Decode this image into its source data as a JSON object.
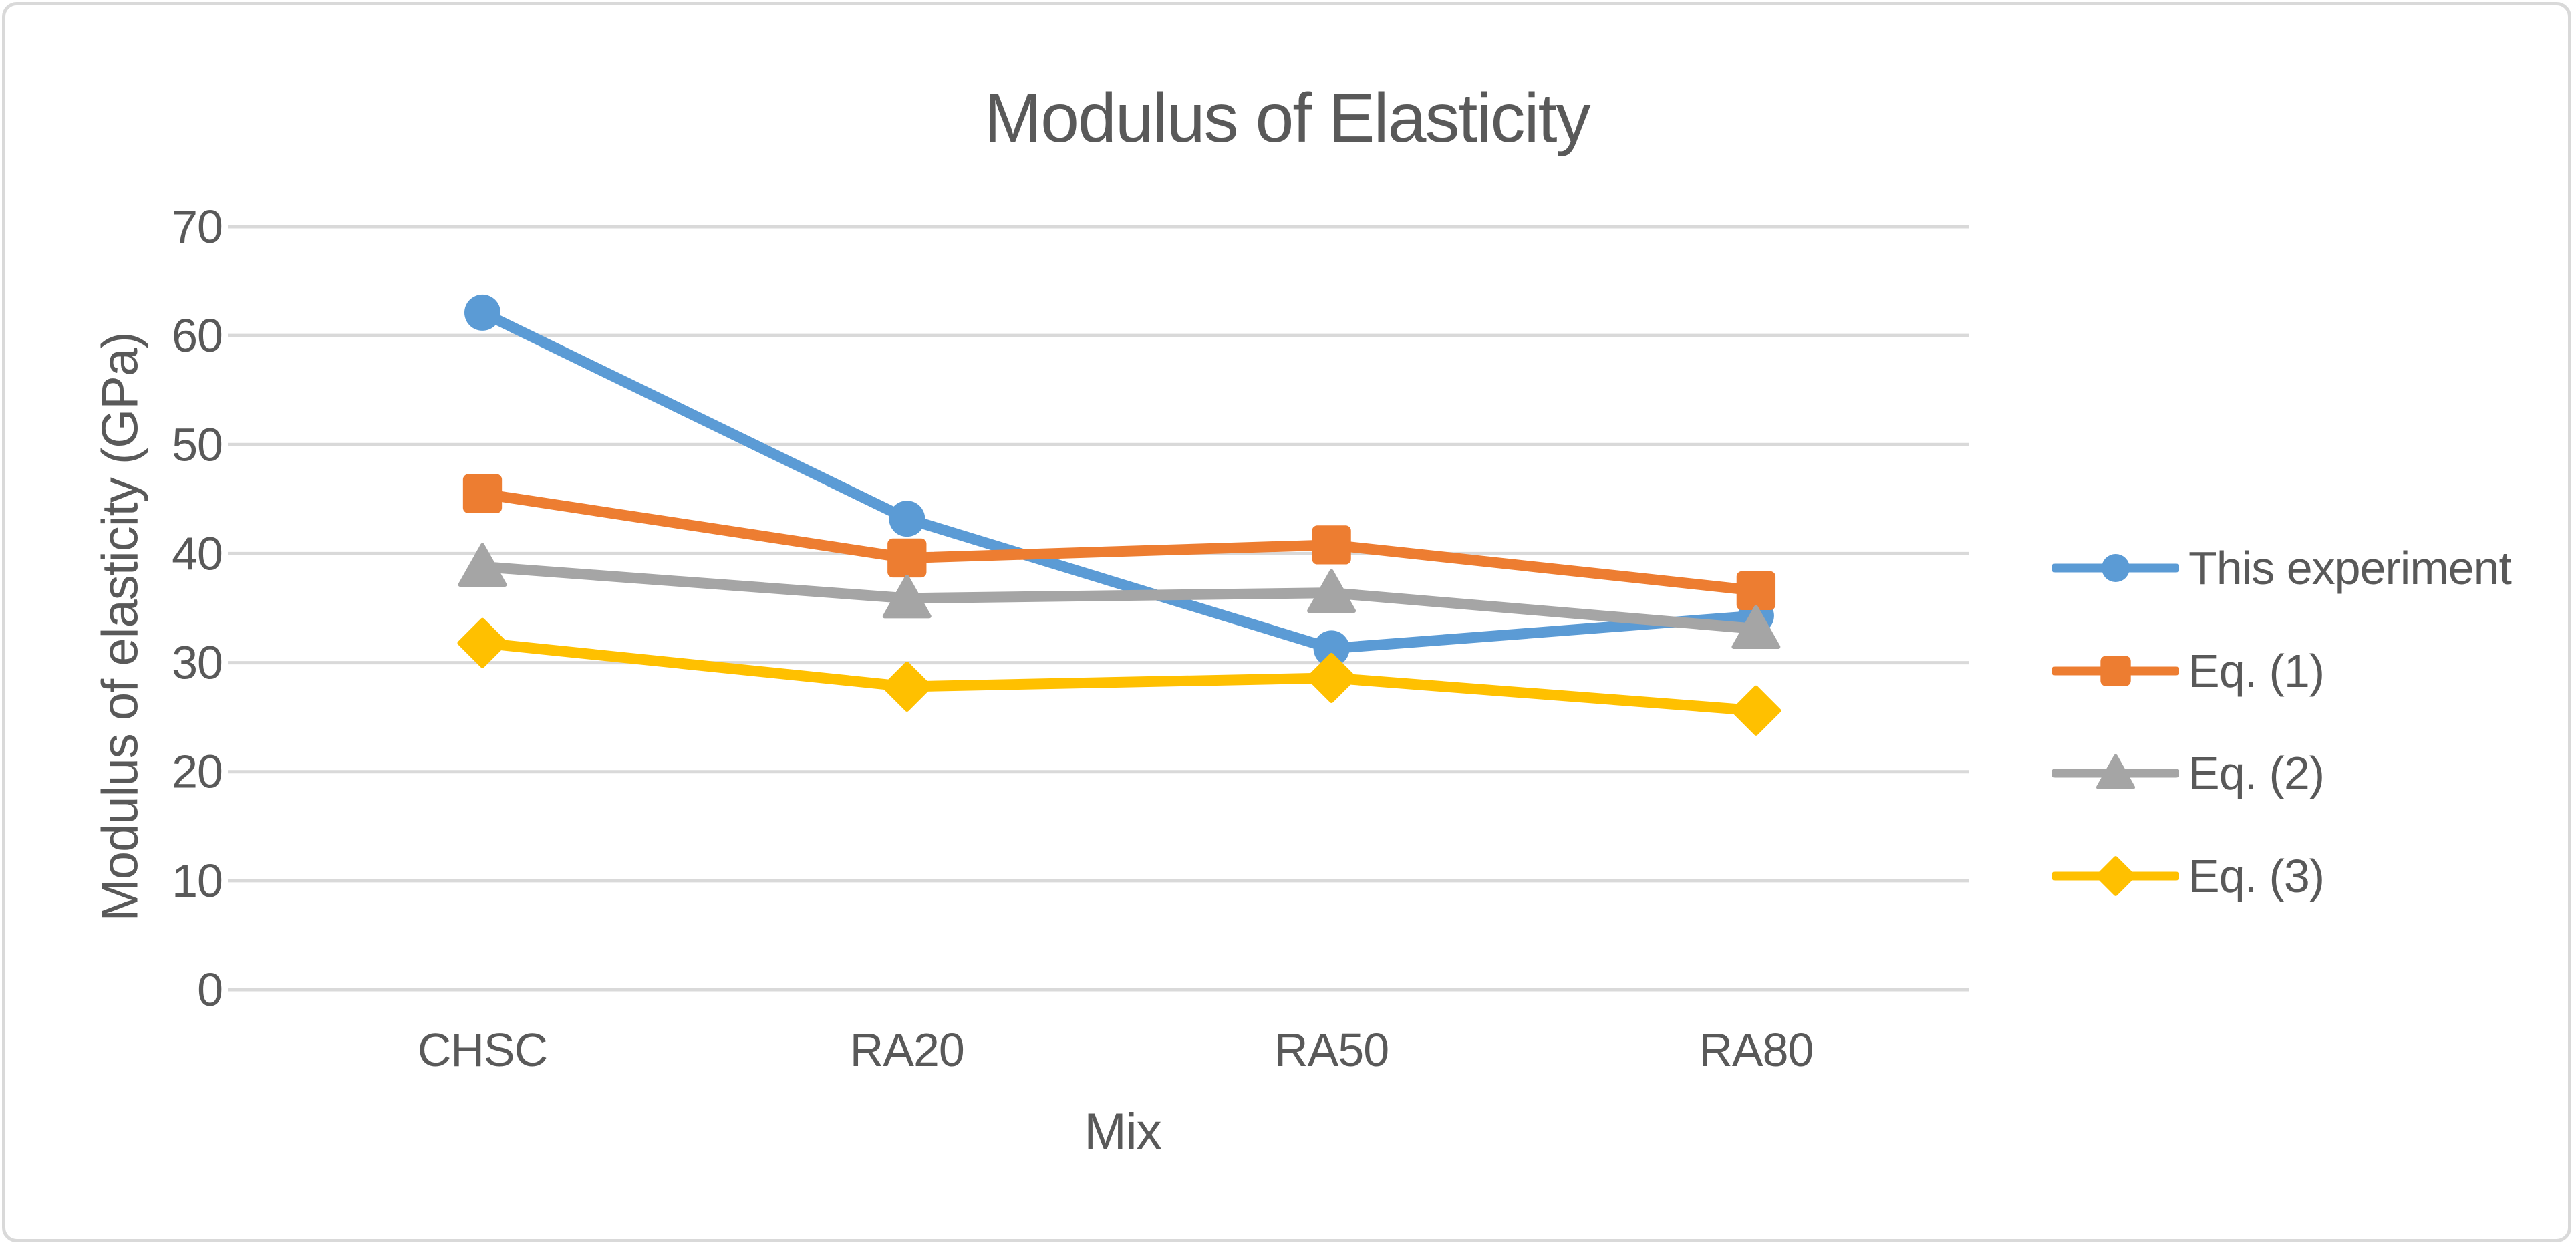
{
  "chart_data": {
    "type": "line",
    "title": "Modulus of Elasticity",
    "xlabel": "Mix",
    "ylabel": "Modulus of elasticity (GPa)",
    "categories": [
      "CHSC",
      "RA20",
      "RA50",
      "RA80"
    ],
    "series": [
      {
        "name": "This experiment",
        "marker": "circle",
        "color": "#5B9BD5",
        "values": [
          62.1,
          43.2,
          31.3,
          34.3
        ]
      },
      {
        "name": "Eq. (1)",
        "marker": "square",
        "color": "#ED7D31",
        "values": [
          45.5,
          39.6,
          40.8,
          36.6
        ]
      },
      {
        "name": "Eq. (2)",
        "marker": "triangle",
        "color": "#A5A5A5",
        "values": [
          38.8,
          35.9,
          36.4,
          33.1
        ]
      },
      {
        "name": "Eq. (3)",
        "marker": "diamond",
        "color": "#FFC000",
        "values": [
          31.8,
          27.8,
          28.6,
          25.6
        ]
      }
    ],
    "y_ticks": [
      0,
      10,
      20,
      30,
      40,
      50,
      60,
      70
    ],
    "ylim": [
      0,
      70
    ],
    "grid": true,
    "legend_position": "right"
  },
  "colors": {
    "text": "#595959",
    "gridline": "#D9D9D9",
    "border": "#D9D9D9",
    "background": "#FFFFFF"
  }
}
